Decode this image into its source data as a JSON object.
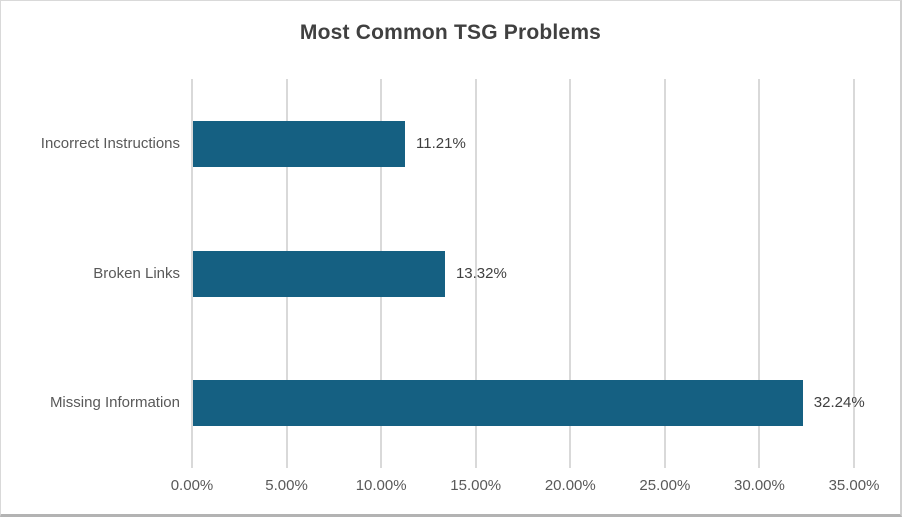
{
  "chart_data": {
    "type": "bar",
    "orientation": "horizontal",
    "title": "Most Common TSG Problems",
    "categories": [
      "Incorrect Instructions",
      "Broken Links",
      "Missing Information"
    ],
    "values": [
      11.21,
      13.32,
      32.24
    ],
    "value_labels": [
      "11.21%",
      "13.32%",
      "32.24%"
    ],
    "x_tick_values": [
      0,
      5,
      10,
      15,
      20,
      25,
      30,
      35
    ],
    "x_tick_labels": [
      "0.00%",
      "5.00%",
      "10.00%",
      "15.00%",
      "20.00%",
      "25.00%",
      "30.00%",
      "35.00%"
    ],
    "xlim": [
      0,
      35
    ],
    "xlabel": "",
    "ylabel": "",
    "grid": true,
    "legend": false,
    "colors": {
      "bar_fill": "#156082",
      "gridline": "#D9D9D9",
      "title_text": "#404040",
      "value_label_text": "#404040",
      "axis_text": "#595959",
      "frame_border": "#D9D9D9"
    }
  }
}
